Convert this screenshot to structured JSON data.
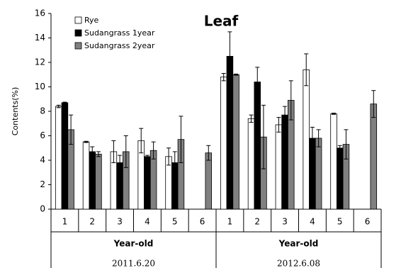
{
  "chart_data": {
    "type": "bar",
    "title": "Leaf",
    "y_label": "Contents(%)",
    "categories": [
      "1",
      "2",
      "3",
      "4",
      "5",
      "6",
      "1",
      "2",
      "3",
      "4",
      "5",
      "6"
    ],
    "groups": [
      {
        "label": "Year-old",
        "sublabel": "2011.6.20"
      },
      {
        "label": "Year-old",
        "sublabel": "2012.6.08"
      }
    ],
    "series": [
      {
        "name": "Rye",
        "color": "#ffffff",
        "values": [
          8.4,
          5.5,
          4.7,
          5.6,
          4.3,
          null,
          10.8,
          7.4,
          6.9,
          11.4,
          7.8,
          null
        ],
        "errors": [
          0.1,
          0.05,
          0.9,
          1.0,
          0.7,
          null,
          0.3,
          0.3,
          0.6,
          1.3,
          0.05,
          null
        ]
      },
      {
        "name": "Sudangrass 1year",
        "color": "#000000",
        "values": [
          8.7,
          4.7,
          3.8,
          4.3,
          3.8,
          null,
          12.5,
          10.4,
          7.7,
          5.8,
          5.0,
          null
        ],
        "errors": [
          0.05,
          0.4,
          0.6,
          0.1,
          0.9,
          null,
          2.0,
          1.2,
          0.7,
          0.9,
          0.2,
          null
        ]
      },
      {
        "name": "Sudangrass 2year",
        "color": "#808080",
        "values": [
          6.5,
          4.5,
          4.7,
          4.8,
          5.7,
          4.6,
          11.0,
          5.9,
          8.9,
          5.8,
          5.3,
          8.6
        ],
        "errors": [
          1.2,
          0.2,
          1.3,
          0.7,
          1.9,
          0.6,
          0.05,
          2.6,
          1.6,
          0.7,
          1.2,
          1.1
        ]
      }
    ],
    "ylim": [
      0,
      16
    ],
    "yticks": [
      0,
      2,
      4,
      6,
      8,
      10,
      12,
      14,
      16
    ],
    "grid": false,
    "legend": "upper left"
  }
}
